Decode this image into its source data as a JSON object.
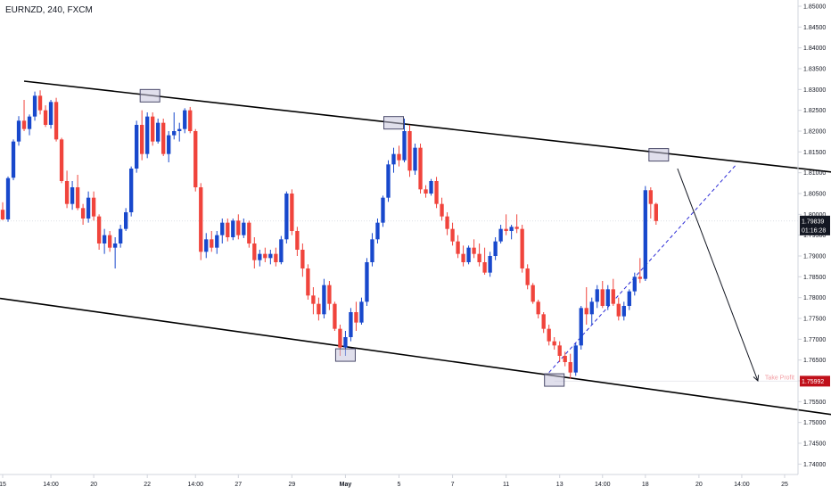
{
  "title": "EURNZD, 240, FXCM",
  "colors": {
    "up": "#1848cc",
    "down": "#f0443c",
    "trendline": "#000000",
    "projection": "#2b2bd6",
    "arrow": "#131722",
    "marker_fill": "#c7c5dc",
    "marker_stroke": "#4a4a6a",
    "price_badge": "#131722",
    "tp_badge": "#c0101a",
    "tp_text": "#f29aa0",
    "axis_text": "#131722",
    "axis_line": "#d1d4dc"
  },
  "price_axis": {
    "ticks": [
      "1.85000",
      "1.84500",
      "1.84000",
      "1.83500",
      "1.83000",
      "1.82500",
      "1.82000",
      "1.81500",
      "1.81000",
      "1.80500",
      "1.80000",
      "1.79500",
      "1.79000",
      "1.78500",
      "1.78000",
      "1.77500",
      "1.77000",
      "1.76500",
      "1.76000",
      "1.75500",
      "1.75000",
      "1.74500",
      "1.74000"
    ],
    "current_price": "1.79839",
    "countdown": "01:16:28",
    "take_profit_price": "1.75992"
  },
  "time_axis": {
    "ticks": [
      {
        "label": "15",
        "index": 0
      },
      {
        "label": "14:00",
        "index": 9
      },
      {
        "label": "20",
        "index": 17
      },
      {
        "label": "22",
        "index": 27
      },
      {
        "label": "14:00",
        "index": 36
      },
      {
        "label": "27",
        "index": 44
      },
      {
        "label": "29",
        "index": 54
      },
      {
        "label": "May",
        "index": 64
      },
      {
        "label": "5",
        "index": 74
      },
      {
        "label": "7",
        "index": 84
      },
      {
        "label": "11",
        "index": 94
      },
      {
        "label": "13",
        "index": 104
      },
      {
        "label": "14:00",
        "index": 112
      },
      {
        "label": "18",
        "index": 120
      },
      {
        "label": "20",
        "index": 130
      },
      {
        "label": "14:00",
        "index": 138
      },
      {
        "label": "25",
        "index": 146
      }
    ]
  },
  "annotations": {
    "take_profit_label": "Take Profit"
  },
  "chart_data": {
    "type": "candlestick",
    "title": "EURNZD, 240, FXCM",
    "ylim": [
      1.7375,
      1.8515
    ],
    "x_range_bars": [
      -0.5,
      148.5
    ],
    "price_ticks": [
      1.85,
      1.845,
      1.84,
      1.835,
      1.83,
      1.825,
      1.82,
      1.815,
      1.81,
      1.805,
      1.8,
      1.795,
      1.79,
      1.785,
      1.78,
      1.775,
      1.77,
      1.765,
      1.76,
      1.755,
      1.75,
      1.745,
      1.74
    ],
    "candles": [
      [
        1.8011,
        1.8029,
        1.7986,
        1.7988
      ],
      [
        1.7988,
        1.8091,
        1.7982,
        1.8087
      ],
      [
        1.8088,
        1.818,
        1.8082,
        1.8175
      ],
      [
        1.8175,
        1.8236,
        1.8165,
        1.8225
      ],
      [
        1.8225,
        1.8275,
        1.82,
        1.8205
      ],
      [
        1.8205,
        1.824,
        1.819,
        1.8235
      ],
      [
        1.8235,
        1.8295,
        1.8225,
        1.8285
      ],
      [
        1.8285,
        1.8298,
        1.824,
        1.825
      ],
      [
        1.825,
        1.8262,
        1.821,
        1.8215
      ],
      [
        1.8215,
        1.8275,
        1.8206,
        1.827
      ],
      [
        1.827,
        1.828,
        1.8175,
        1.818
      ],
      [
        1.818,
        1.8184,
        1.8075,
        1.808
      ],
      [
        1.808,
        1.8105,
        1.8015,
        1.8025
      ],
      [
        1.8025,
        1.808,
        1.8011,
        1.8065
      ],
      [
        1.8065,
        1.8095,
        1.801,
        1.8015
      ],
      [
        1.8015,
        1.8025,
        1.7975,
        1.799
      ],
      [
        1.799,
        1.8055,
        1.798,
        1.804
      ],
      [
        1.804,
        1.8055,
        1.7985,
        1.7995
      ],
      [
        1.7995,
        1.8,
        1.7915,
        1.793
      ],
      [
        1.793,
        1.7965,
        1.7905,
        1.795
      ],
      [
        1.795,
        1.796,
        1.791,
        1.792
      ],
      [
        1.792,
        1.7945,
        1.787,
        1.793
      ],
      [
        1.793,
        1.7975,
        1.792,
        1.7965
      ],
      [
        1.7965,
        1.8015,
        1.796,
        1.8005
      ],
      [
        1.8005,
        1.8115,
        1.7995,
        1.811
      ],
      [
        1.811,
        1.8225,
        1.81,
        1.8215
      ],
      [
        1.8215,
        1.825,
        1.813,
        1.8145
      ],
      [
        1.8145,
        1.8245,
        1.8135,
        1.8235
      ],
      [
        1.8235,
        1.8245,
        1.8165,
        1.8175
      ],
      [
        1.8175,
        1.823,
        1.817,
        1.822
      ],
      [
        1.822,
        1.823,
        1.814,
        1.8145
      ],
      [
        1.8145,
        1.82,
        1.8125,
        1.819
      ],
      [
        1.819,
        1.8245,
        1.818,
        1.82
      ],
      [
        1.82,
        1.822,
        1.8175,
        1.8205
      ],
      [
        1.8205,
        1.8255,
        1.8195,
        1.825
      ],
      [
        1.825,
        1.8258,
        1.8195,
        1.82
      ],
      [
        1.82,
        1.8205,
        1.8055,
        1.8065
      ],
      [
        1.8065,
        1.8075,
        1.789,
        1.791
      ],
      [
        1.791,
        1.7955,
        1.7895,
        1.794
      ],
      [
        1.794,
        1.796,
        1.791,
        1.792
      ],
      [
        1.792,
        1.796,
        1.7905,
        1.795
      ],
      [
        1.795,
        1.799,
        1.793,
        1.798
      ],
      [
        1.798,
        1.799,
        1.7935,
        1.7945
      ],
      [
        1.7945,
        1.799,
        1.7938,
        1.7985
      ],
      [
        1.7985,
        1.8,
        1.794,
        1.795
      ],
      [
        1.795,
        1.799,
        1.7943,
        1.798
      ],
      [
        1.798,
        1.7985,
        1.792,
        1.793
      ],
      [
        1.793,
        1.7945,
        1.787,
        1.789
      ],
      [
        1.789,
        1.7915,
        1.7875,
        1.7905
      ],
      [
        1.7905,
        1.792,
        1.7885,
        1.7895
      ],
      [
        1.7895,
        1.7915,
        1.788,
        1.7905
      ],
      [
        1.7905,
        1.792,
        1.7875,
        1.7885
      ],
      [
        1.7885,
        1.7948,
        1.788,
        1.794
      ],
      [
        1.794,
        1.8055,
        1.793,
        1.805
      ],
      [
        1.805,
        1.806,
        1.795,
        1.796
      ],
      [
        1.796,
        1.797,
        1.79,
        1.7915
      ],
      [
        1.7915,
        1.793,
        1.785,
        1.787
      ],
      [
        1.787,
        1.788,
        1.7795,
        1.7805
      ],
      [
        1.7805,
        1.7825,
        1.776,
        1.7785
      ],
      [
        1.7785,
        1.78,
        1.7745,
        1.776
      ],
      [
        1.776,
        1.7845,
        1.775,
        1.783
      ],
      [
        1.783,
        1.784,
        1.777,
        1.7785
      ],
      [
        1.7785,
        1.779,
        1.772,
        1.7725
      ],
      [
        1.7725,
        1.7735,
        1.766,
        1.768
      ],
      [
        1.768,
        1.772,
        1.766,
        1.7705
      ],
      [
        1.7705,
        1.7775,
        1.7695,
        1.7765
      ],
      [
        1.7765,
        1.779,
        1.772,
        1.774
      ],
      [
        1.774,
        1.78,
        1.7735,
        1.779
      ],
      [
        1.779,
        1.7895,
        1.778,
        1.7885
      ],
      [
        1.7885,
        1.7955,
        1.7875,
        1.794
      ],
      [
        1.794,
        1.799,
        1.793,
        1.798
      ],
      [
        1.798,
        1.8045,
        1.797,
        1.804
      ],
      [
        1.804,
        1.813,
        1.803,
        1.812
      ],
      [
        1.812,
        1.816,
        1.81,
        1.8145
      ],
      [
        1.8145,
        1.8165,
        1.8115,
        1.813
      ],
      [
        1.813,
        1.823,
        1.8125,
        1.82
      ],
      [
        1.82,
        1.8215,
        1.809,
        1.8105
      ],
      [
        1.8105,
        1.817,
        1.8095,
        1.816
      ],
      [
        1.816,
        1.817,
        1.805,
        1.806
      ],
      [
        1.806,
        1.807,
        1.804,
        1.805
      ],
      [
        1.805,
        1.8085,
        1.8045,
        1.808
      ],
      [
        1.808,
        1.809,
        1.8015,
        1.8025
      ],
      [
        1.8025,
        1.804,
        1.7985,
        1.7995
      ],
      [
        1.7995,
        1.8005,
        1.795,
        1.7965
      ],
      [
        1.7965,
        1.798,
        1.7925,
        1.7935
      ],
      [
        1.7935,
        1.795,
        1.7895,
        1.7905
      ],
      [
        1.7905,
        1.7925,
        1.7875,
        1.7885
      ],
      [
        1.7885,
        1.7925,
        1.788,
        1.792
      ],
      [
        1.792,
        1.794,
        1.7895,
        1.7905
      ],
      [
        1.7905,
        1.793,
        1.7875,
        1.7885
      ],
      [
        1.7885,
        1.792,
        1.7855,
        1.786
      ],
      [
        1.786,
        1.791,
        1.785,
        1.79
      ],
      [
        1.79,
        1.7945,
        1.789,
        1.7935
      ],
      [
        1.7935,
        1.7975,
        1.793,
        1.7965
      ],
      [
        1.7965,
        1.8,
        1.795,
        1.796
      ],
      [
        1.796,
        1.7975,
        1.794,
        1.797
      ],
      [
        1.797,
        1.8,
        1.7955,
        1.7965
      ],
      [
        1.7965,
        1.7975,
        1.786,
        1.787
      ],
      [
        1.787,
        1.788,
        1.782,
        1.783
      ],
      [
        1.783,
        1.7835,
        1.7785,
        1.779
      ],
      [
        1.779,
        1.7795,
        1.775,
        1.776
      ],
      [
        1.776,
        1.7765,
        1.7715,
        1.7725
      ],
      [
        1.7725,
        1.7735,
        1.7685,
        1.7695
      ],
      [
        1.7695,
        1.7705,
        1.7675,
        1.7685
      ],
      [
        1.7685,
        1.7695,
        1.7645,
        1.766
      ],
      [
        1.766,
        1.767,
        1.7635,
        1.7645
      ],
      [
        1.7645,
        1.7665,
        1.7605,
        1.762
      ],
      [
        1.762,
        1.769,
        1.7612,
        1.7685
      ],
      [
        1.7685,
        1.778,
        1.7675,
        1.7775
      ],
      [
        1.7775,
        1.7825,
        1.7735,
        1.776
      ],
      [
        1.776,
        1.78,
        1.7735,
        1.779
      ],
      [
        1.779,
        1.783,
        1.7775,
        1.782
      ],
      [
        1.782,
        1.784,
        1.7775,
        1.778
      ],
      [
        1.778,
        1.783,
        1.777,
        1.782
      ],
      [
        1.782,
        1.7845,
        1.778,
        1.7785
      ],
      [
        1.7785,
        1.78,
        1.7745,
        1.7755
      ],
      [
        1.7755,
        1.779,
        1.7745,
        1.778
      ],
      [
        1.778,
        1.782,
        1.777,
        1.7815
      ],
      [
        1.7815,
        1.786,
        1.7805,
        1.785
      ],
      [
        1.785,
        1.7895,
        1.7835,
        1.7845
      ],
      [
        1.7845,
        1.8068,
        1.784,
        1.8058
      ],
      [
        1.8058,
        1.8065,
        1.799,
        1.8025
      ],
      [
        1.8025,
        1.8028,
        1.7975,
        1.7984
      ]
    ],
    "trendlines": [
      {
        "name": "upper",
        "points": [
          [
            4,
            1.832
          ],
          [
            163.5,
            1.8089
          ]
        ]
      },
      {
        "name": "lower",
        "points": [
          [
            -0.5,
            1.7798
          ],
          [
            156.5,
            1.7516
          ]
        ]
      }
    ],
    "projection": [
      [
        102,
        1.762
      ],
      [
        137,
        1.812
      ]
    ],
    "target_arrow": [
      [
        126,
        1.811
      ],
      [
        141,
        1.76
      ]
    ],
    "take_profit_level": 1.75992,
    "current_price": 1.79839,
    "markers": [
      {
        "index": 27.5,
        "price": 1.8285
      },
      {
        "index": 73.0,
        "price": 1.822
      },
      {
        "index": 64.0,
        "price": 1.7662
      },
      {
        "index": 103.0,
        "price": 1.7602
      },
      {
        "index": 122.5,
        "price": 1.8143
      }
    ]
  }
}
